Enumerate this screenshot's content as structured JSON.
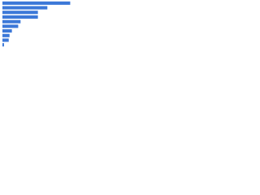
{
  "chart_data": {
    "type": "hbar",
    "categories": [
      null,
      null,
      null,
      null,
      null,
      null,
      null,
      null,
      null,
      null
    ],
    "values": [
      86,
      57,
      45,
      45,
      23,
      20,
      12,
      9,
      8,
      2
    ],
    "color": "#3c78d8",
    "xlim": [
      0,
      100
    ]
  }
}
